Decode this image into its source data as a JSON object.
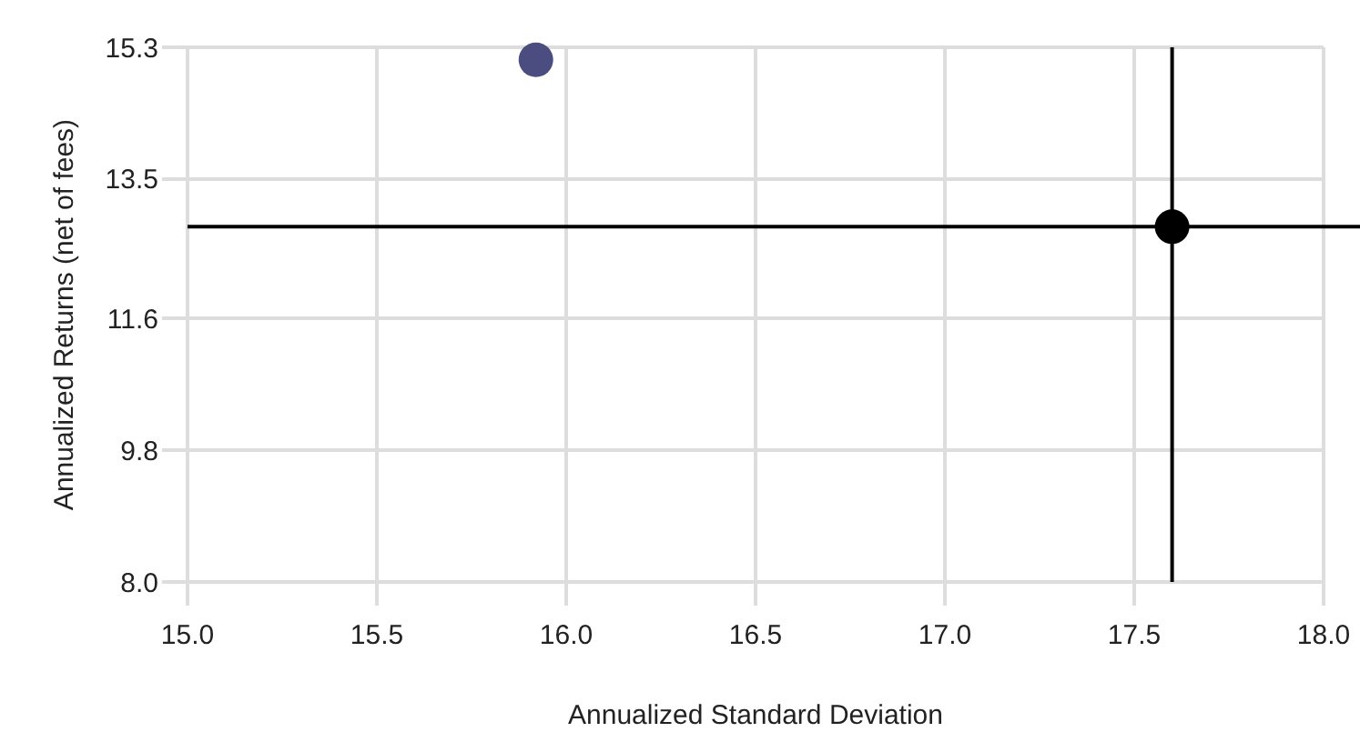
{
  "chart_data": {
    "type": "scatter",
    "xlabel": "Annualized Standard Deviation",
    "ylabel": "Annualized Returns (net of fees)",
    "xlim": [
      15.0,
      18.0
    ],
    "xticks": [
      {
        "value": 15,
        "label": "15.0"
      },
      15.5,
      {
        "value": 16,
        "label": "16.0"
      },
      16.5,
      {
        "value": 17,
        "label": "17.0"
      },
      17.5,
      {
        "value": 18,
        "label": "18.0"
      }
    ],
    "ylim": [
      8.0,
      15.3
    ],
    "yticks": [
      {
        "value": 8,
        "label": "8.0"
      },
      9.8,
      11.6,
      13.5,
      15.3
    ],
    "grid": true,
    "marker": "circle",
    "series": [
      {
        "color": "#4b4c7f",
        "x": [
          15.92
        ],
        "values": [
          15.13
        ]
      },
      {
        "color": "#000000",
        "x": [
          17.6
        ],
        "values": [
          12.85
        ]
      }
    ],
    "ref_lines": [
      {
        "axis": "x",
        "value": 17.6,
        "color": "#000000"
      },
      {
        "axis": "y",
        "value": 12.85,
        "color": "#000000"
      }
    ]
  }
}
